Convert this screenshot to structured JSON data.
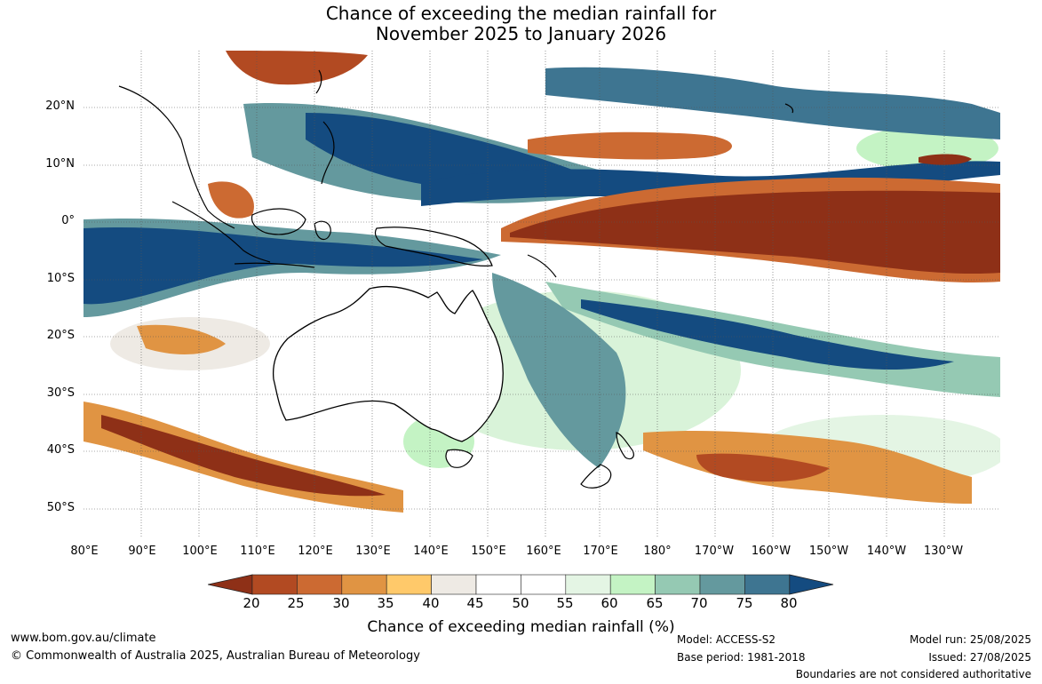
{
  "title": {
    "line1": "Chance of exceeding the median rainfall for",
    "line2": "November 2025 to January 2026"
  },
  "latitude_labels": [
    "20°N",
    "10°N",
    "0°",
    "10°S",
    "20°S",
    "30°S",
    "40°S",
    "50°S"
  ],
  "longitude_labels": [
    "80°E",
    "90°E",
    "100°E",
    "110°E",
    "120°E",
    "130°E",
    "140°E",
    "150°E",
    "160°E",
    "170°E",
    "180°",
    "170°W",
    "160°W",
    "150°W",
    "140°W",
    "130°W"
  ],
  "colorbar": {
    "ticks": [
      "20",
      "25",
      "30",
      "35",
      "40",
      "45",
      "50",
      "55",
      "60",
      "65",
      "70",
      "75",
      "80"
    ],
    "colors": [
      "#8e3017",
      "#b24a22",
      "#cc6a32",
      "#e09443",
      "#ffc96a",
      "#eeeae4",
      "#ffffff",
      "#ffffff",
      "#e4f5e4",
      "#c4f3c4",
      "#95c9b3",
      "#64999e",
      "#3e7591",
      "#144b80"
    ],
    "title": "Chance of exceeding median rainfall (%)"
  },
  "footer": {
    "website": "www.bom.gov.au/climate",
    "copyright": "© Commonwealth of Australia 2025, Australian Bureau of Meteorology",
    "model": "Model: ACCESS-S2",
    "base_period": "Base period: 1981-2018",
    "model_run": "Model run: 25/08/2025",
    "issued": "Issued: 27/08/2025",
    "disclaimer": "Boundaries are not considered authoritative"
  }
}
